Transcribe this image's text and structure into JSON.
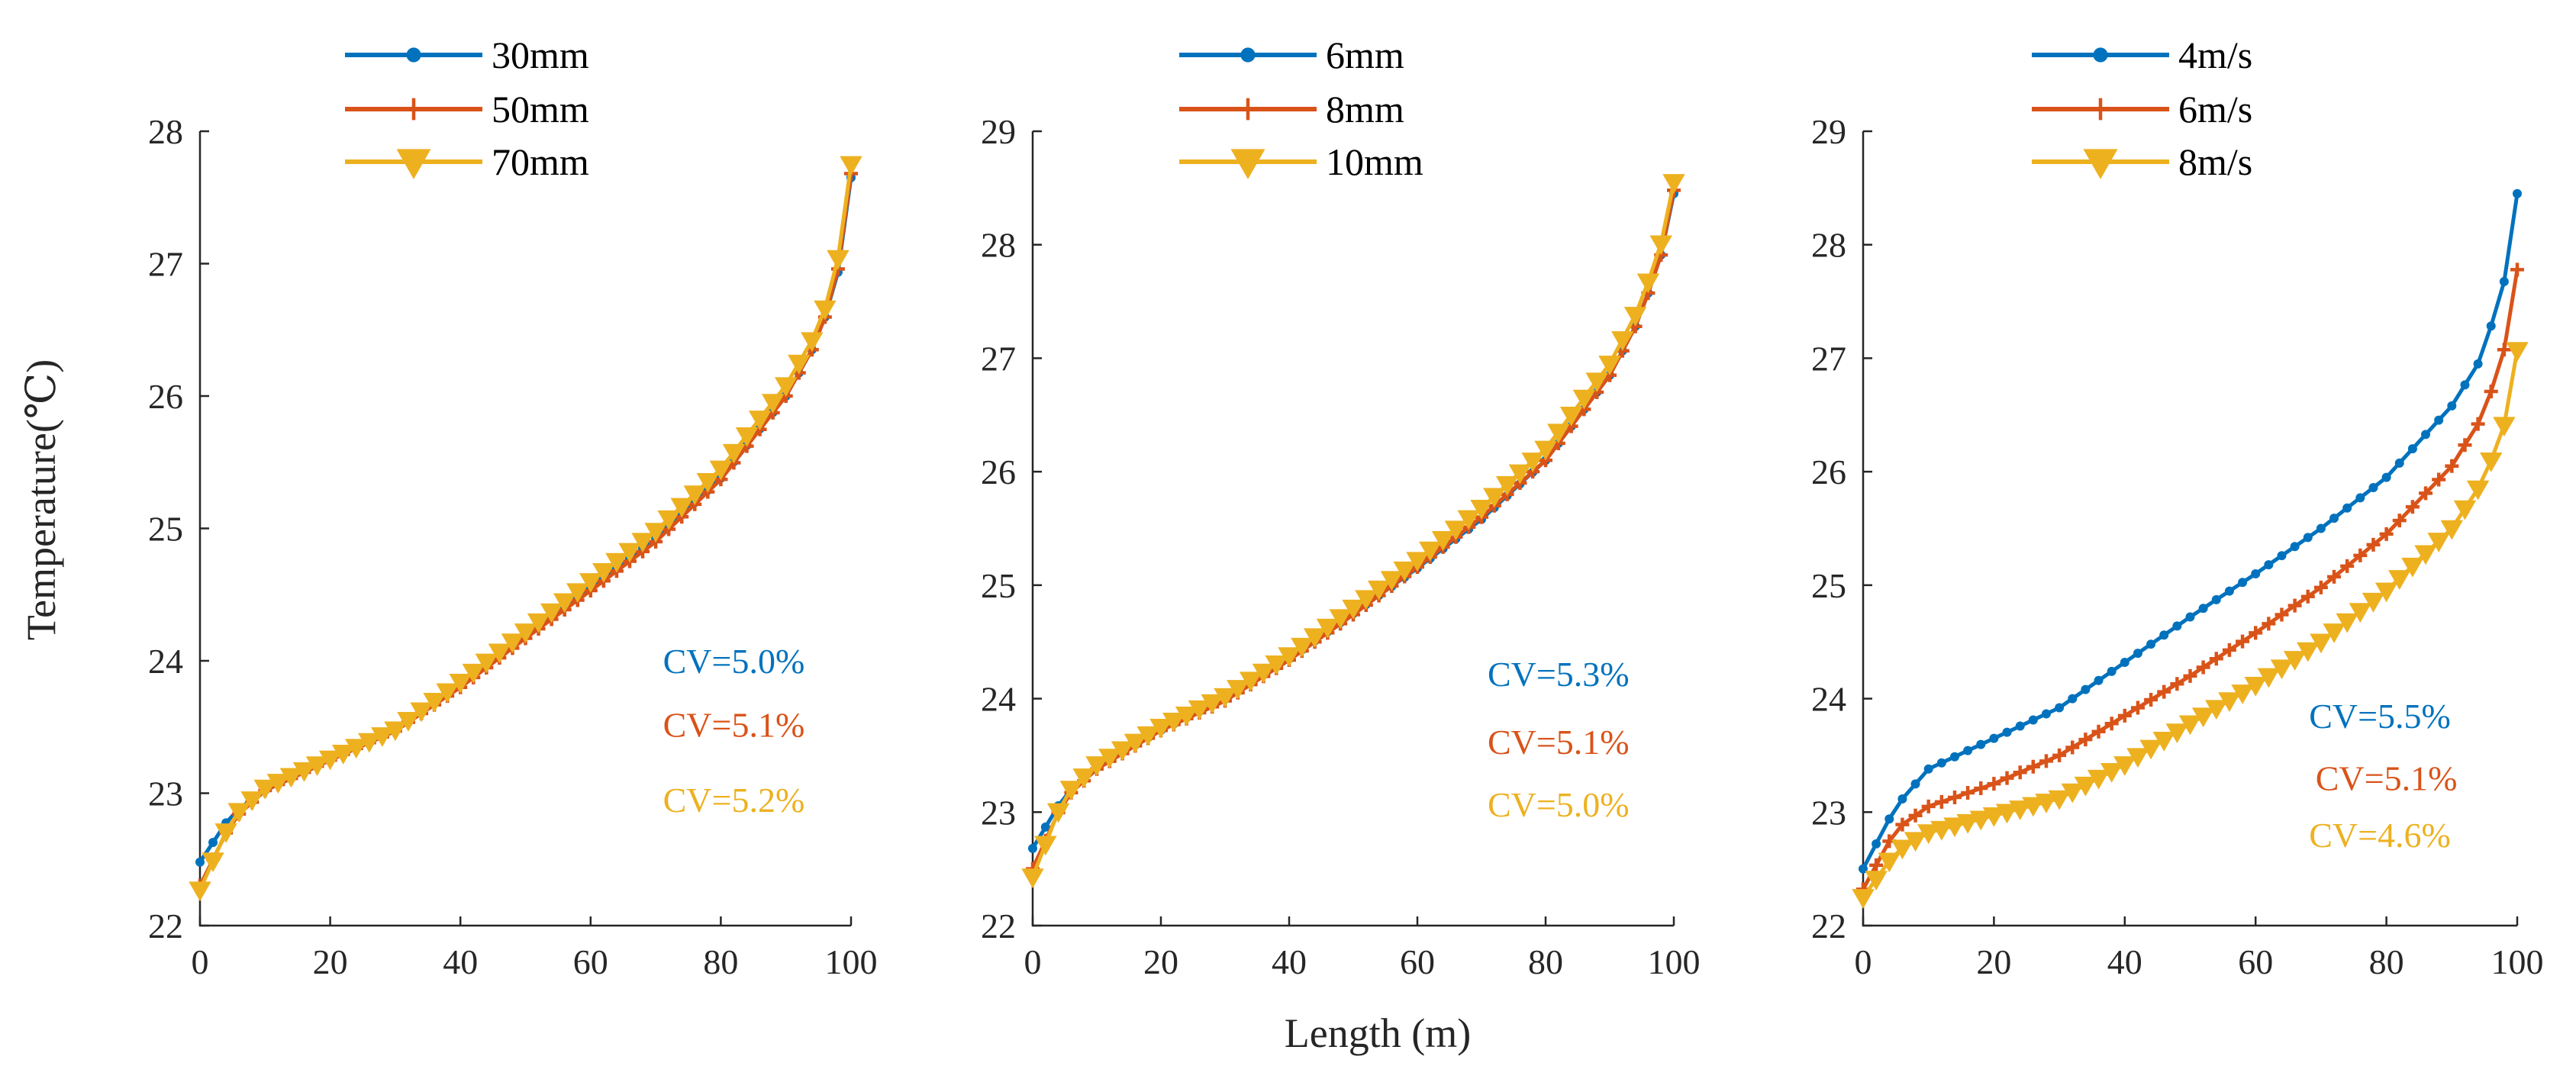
{
  "figure": {
    "shared_xlabel": "Length (m)",
    "shared_ylabel": "Temperature(℃)"
  },
  "colors": {
    "blue": "#0072BD",
    "orange": "#D95319",
    "yellow": "#EDB120"
  },
  "chart_data": [
    {
      "type": "line",
      "title": "",
      "xlabel": "Length (m)",
      "ylabel": "Temperature(℃)",
      "xlim": [
        0,
        100
      ],
      "ylim": [
        22,
        28
      ],
      "xticks": [
        0,
        20,
        40,
        60,
        80,
        100
      ],
      "yticks": [
        22,
        23,
        24,
        25,
        26,
        27,
        28
      ],
      "legend_position": "top",
      "series": [
        {
          "name": "30mm",
          "color": "#0072BD",
          "marker": "dot",
          "x": [
            0,
            5,
            10,
            20,
            30,
            40,
            50,
            60,
            70,
            80,
            90,
            94,
            97,
            99,
            100
          ],
          "y": [
            22.48,
            22.85,
            23.02,
            23.25,
            23.48,
            23.82,
            24.2,
            24.56,
            24.92,
            25.38,
            26.0,
            26.35,
            26.72,
            27.15,
            27.65
          ]
        },
        {
          "name": "50mm",
          "color": "#D95319",
          "marker": "plus",
          "x": [
            0,
            5,
            10,
            20,
            30,
            40,
            50,
            60,
            70,
            80,
            90,
            94,
            97,
            99,
            100
          ],
          "y": [
            22.3,
            22.8,
            23.02,
            23.25,
            23.47,
            23.8,
            24.17,
            24.53,
            24.9,
            25.37,
            26.0,
            26.35,
            26.72,
            27.2,
            27.68
          ]
        },
        {
          "name": "70mm",
          "color": "#EDB120",
          "marker": "triangle-down",
          "x": [
            0,
            5,
            10,
            20,
            30,
            40,
            50,
            60,
            70,
            80,
            90,
            94,
            97,
            99,
            100
          ],
          "y": [
            22.27,
            22.82,
            23.04,
            23.26,
            23.48,
            23.84,
            24.22,
            24.6,
            24.98,
            25.45,
            26.08,
            26.42,
            26.78,
            27.3,
            27.75
          ]
        }
      ],
      "annotations": [
        {
          "text": "CV=5.0%",
          "color": "#0072BD",
          "x": 82,
          "y": 24.0
        },
        {
          "text": "CV=5.1%",
          "color": "#D95319",
          "x": 82,
          "y": 23.52
        },
        {
          "text": "CV=5.2%",
          "color": "#EDB120",
          "x": 82,
          "y": 22.95
        }
      ]
    },
    {
      "type": "line",
      "title": "",
      "xlabel": "Length (m)",
      "ylabel": "",
      "xlim": [
        0,
        100
      ],
      "ylim": [
        22,
        29
      ],
      "xticks": [
        0,
        20,
        40,
        60,
        80,
        100
      ],
      "yticks": [
        22,
        23,
        24,
        25,
        26,
        27,
        28,
        29
      ],
      "legend_position": "top",
      "series": [
        {
          "name": "6mm",
          "color": "#0072BD",
          "marker": "dot",
          "x": [
            0,
            5,
            10,
            20,
            30,
            40,
            50,
            60,
            70,
            80,
            90,
            94,
            97,
            99,
            100
          ],
          "y": [
            22.68,
            23.15,
            23.4,
            23.72,
            24.0,
            24.35,
            24.75,
            25.15,
            25.58,
            26.1,
            26.85,
            27.28,
            27.72,
            28.1,
            28.45
          ]
        },
        {
          "name": "8mm",
          "color": "#D95319",
          "marker": "plus",
          "x": [
            0,
            5,
            10,
            20,
            30,
            40,
            50,
            60,
            70,
            80,
            90,
            94,
            97,
            99,
            100
          ],
          "y": [
            22.5,
            23.12,
            23.38,
            23.72,
            23.98,
            24.34,
            24.74,
            25.16,
            25.6,
            26.1,
            26.85,
            27.28,
            27.72,
            28.1,
            28.48
          ]
        },
        {
          "name": "10mm",
          "color": "#EDB120",
          "marker": "triangle-down",
          "x": [
            0,
            5,
            10,
            20,
            30,
            40,
            50,
            60,
            70,
            80,
            90,
            94,
            97,
            99,
            100
          ],
          "y": [
            22.43,
            23.15,
            23.42,
            23.75,
            24.02,
            24.38,
            24.8,
            25.22,
            25.68,
            26.2,
            26.95,
            27.38,
            27.82,
            28.2,
            28.55
          ]
        }
      ],
      "annotations": [
        {
          "text": "CV=5.3%",
          "color": "#0072BD",
          "x": 82,
          "y": 24.22
        },
        {
          "text": "CV=5.1%",
          "color": "#D95319",
          "x": 82,
          "y": 23.62
        },
        {
          "text": "CV=5.0%",
          "color": "#EDB120",
          "x": 82,
          "y": 23.07
        }
      ]
    },
    {
      "type": "line",
      "title": "",
      "xlabel": "Length (m)",
      "ylabel": "",
      "xlim": [
        0,
        100
      ],
      "ylim": [
        22,
        29
      ],
      "xticks": [
        0,
        20,
        40,
        60,
        80,
        100
      ],
      "yticks": [
        22,
        23,
        24,
        25,
        26,
        27,
        28,
        29
      ],
      "legend_position": "top",
      "series": [
        {
          "name": "4m/s",
          "color": "#0072BD",
          "marker": "dot",
          "x": [
            0,
            5,
            10,
            20,
            30,
            40,
            50,
            60,
            70,
            80,
            90,
            94,
            97,
            99,
            100
          ],
          "y": [
            22.5,
            23.05,
            23.38,
            23.65,
            23.92,
            24.32,
            24.72,
            25.1,
            25.5,
            25.95,
            26.58,
            26.95,
            27.45,
            27.9,
            28.45
          ]
        },
        {
          "name": "6m/s",
          "color": "#D95319",
          "marker": "plus",
          "x": [
            0,
            5,
            10,
            20,
            30,
            40,
            50,
            60,
            70,
            80,
            90,
            94,
            97,
            99,
            100
          ],
          "y": [
            22.32,
            22.85,
            23.05,
            23.25,
            23.5,
            23.85,
            24.2,
            24.58,
            24.98,
            25.45,
            26.05,
            26.42,
            26.85,
            27.3,
            27.78
          ]
        },
        {
          "name": "8m/s",
          "color": "#EDB120",
          "marker": "triangle-down",
          "x": [
            0,
            5,
            10,
            20,
            30,
            40,
            50,
            60,
            70,
            80,
            90,
            94,
            97,
            99,
            100
          ],
          "y": [
            22.25,
            22.65,
            22.82,
            22.97,
            23.12,
            23.42,
            23.78,
            24.12,
            24.5,
            24.95,
            25.5,
            25.85,
            26.22,
            26.6,
            27.07
          ]
        }
      ],
      "annotations": [
        {
          "text": "CV=5.5%",
          "color": "#0072BD",
          "x": 79,
          "y": 23.85
        },
        {
          "text": "CV=5.1%",
          "color": "#D95319",
          "x": 80,
          "y": 23.3
        },
        {
          "text": "CV=4.6%",
          "color": "#EDB120",
          "x": 79,
          "y": 22.8
        }
      ]
    }
  ]
}
